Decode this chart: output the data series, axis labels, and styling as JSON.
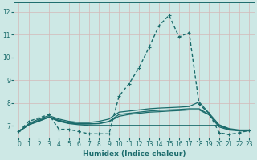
{
  "xlabel": "Humidex (Indice chaleur)",
  "xlim": [
    -0.5,
    23.5
  ],
  "ylim": [
    6.5,
    12.4
  ],
  "xticks": [
    0,
    1,
    2,
    3,
    4,
    5,
    6,
    7,
    8,
    9,
    10,
    11,
    12,
    13,
    14,
    15,
    16,
    17,
    18,
    19,
    20,
    21,
    22,
    23
  ],
  "yticks": [
    7,
    8,
    9,
    10,
    11,
    12
  ],
  "bg_color": "#cde8e5",
  "line_color": "#1a6b6b",
  "grid_color": "#b8d8d5",
  "lines": [
    {
      "x": [
        0,
        1,
        2,
        3,
        4,
        5,
        6,
        7,
        8,
        9,
        10,
        11,
        12,
        13,
        14,
        15,
        16,
        17,
        18,
        19,
        20,
        21,
        22,
        23
      ],
      "y": [
        6.75,
        7.2,
        7.35,
        7.5,
        6.85,
        6.85,
        6.75,
        6.65,
        6.65,
        6.65,
        8.3,
        8.85,
        9.55,
        10.45,
        11.4,
        11.85,
        10.9,
        11.1,
        7.95,
        7.55,
        6.7,
        6.62,
        6.7,
        6.8
      ],
      "marker": "+",
      "markersize": 3.5,
      "linewidth": 1.0,
      "dashes": [
        3,
        2
      ]
    },
    {
      "x": [
        0,
        1,
        2,
        3,
        4,
        5,
        6,
        7,
        8,
        9,
        10,
        11,
        12,
        13,
        14,
        15,
        16,
        17,
        18,
        19,
        20,
        21,
        22,
        23
      ],
      "y": [
        6.75,
        7.1,
        7.3,
        7.45,
        7.3,
        7.2,
        7.15,
        7.15,
        7.2,
        7.3,
        7.6,
        7.65,
        7.7,
        7.75,
        7.78,
        7.8,
        7.82,
        7.85,
        8.05,
        7.55,
        7.05,
        6.88,
        6.82,
        6.82
      ],
      "marker": null,
      "markersize": 0,
      "linewidth": 0.9,
      "dashes": null
    },
    {
      "x": [
        0,
        1,
        2,
        3,
        4,
        5,
        6,
        7,
        8,
        9,
        10,
        11,
        12,
        13,
        14,
        15,
        16,
        17,
        18,
        19,
        20,
        21,
        22,
        23
      ],
      "y": [
        6.75,
        7.05,
        7.25,
        7.4,
        7.25,
        7.15,
        7.1,
        7.1,
        7.1,
        7.2,
        7.5,
        7.55,
        7.6,
        7.65,
        7.68,
        7.7,
        7.72,
        7.75,
        7.75,
        7.5,
        7.0,
        6.85,
        6.8,
        6.8
      ],
      "marker": null,
      "markersize": 0,
      "linewidth": 0.9,
      "dashes": null
    },
    {
      "x": [
        0,
        1,
        2,
        3,
        4,
        5,
        6,
        7,
        8,
        9,
        10,
        11,
        12,
        13,
        14,
        15,
        16,
        17,
        18,
        19,
        20,
        21,
        22,
        23
      ],
      "y": [
        6.75,
        7.05,
        7.2,
        7.38,
        7.2,
        7.1,
        7.05,
        7.02,
        7.02,
        7.02,
        7.02,
        7.02,
        7.02,
        7.02,
        7.02,
        7.02,
        7.02,
        7.02,
        7.02,
        7.02,
        7.02,
        6.85,
        6.8,
        6.8
      ],
      "marker": null,
      "markersize": 0,
      "linewidth": 0.9,
      "dashes": null
    },
    {
      "x": [
        0,
        1,
        2,
        3,
        4,
        5,
        6,
        7,
        8,
        9,
        10,
        11,
        12,
        13,
        14,
        15,
        16,
        17,
        18,
        19,
        20,
        21,
        22,
        23
      ],
      "y": [
        6.75,
        7.05,
        7.22,
        7.38,
        7.22,
        7.12,
        7.08,
        7.08,
        7.1,
        7.18,
        7.42,
        7.5,
        7.55,
        7.6,
        7.62,
        7.65,
        7.67,
        7.7,
        7.7,
        7.48,
        6.95,
        6.82,
        6.78,
        6.78
      ],
      "marker": null,
      "markersize": 0,
      "linewidth": 0.9,
      "dashes": null
    }
  ]
}
